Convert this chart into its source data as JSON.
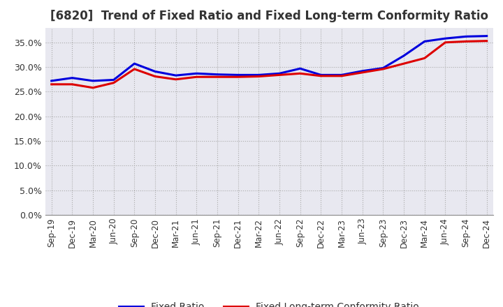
{
  "title": "[6820]  Trend of Fixed Ratio and Fixed Long-term Conformity Ratio",
  "x_labels": [
    "Sep-19",
    "Dec-19",
    "Mar-20",
    "Jun-20",
    "Sep-20",
    "Dec-20",
    "Mar-21",
    "Jun-21",
    "Sep-21",
    "Dec-21",
    "Mar-22",
    "Jun-22",
    "Sep-22",
    "Dec-22",
    "Mar-23",
    "Jun-23",
    "Sep-23",
    "Dec-23",
    "Mar-24",
    "Jun-24",
    "Sep-24",
    "Dec-24"
  ],
  "fixed_ratio": [
    0.272,
    0.278,
    0.272,
    0.274,
    0.307,
    0.291,
    0.283,
    0.287,
    0.285,
    0.284,
    0.284,
    0.287,
    0.297,
    0.284,
    0.284,
    0.292,
    0.298,
    0.323,
    0.352,
    0.358,
    0.362,
    0.363
  ],
  "fixed_lt_ratio": [
    0.265,
    0.265,
    0.258,
    0.268,
    0.296,
    0.281,
    0.275,
    0.28,
    0.28,
    0.28,
    0.281,
    0.284,
    0.287,
    0.282,
    0.282,
    0.289,
    0.296,
    0.307,
    0.318,
    0.35,
    0.352,
    0.353
  ],
  "fixed_ratio_color": "#0000dd",
  "fixed_lt_ratio_color": "#dd0000",
  "ylim": [
    0.0,
    0.38
  ],
  "yticks": [
    0.0,
    0.05,
    0.1,
    0.15,
    0.2,
    0.25,
    0.3,
    0.35
  ],
  "line_width": 2.2,
  "background_color": "#ffffff",
  "plot_bg_color": "#e8e8f0",
  "grid_color": "#aaaaaa",
  "legend_fixed": "Fixed Ratio",
  "legend_fixed_lt": "Fixed Long-term Conformity Ratio",
  "title_fontsize": 12,
  "tick_fontsize": 8.5,
  "ytick_fontsize": 9
}
